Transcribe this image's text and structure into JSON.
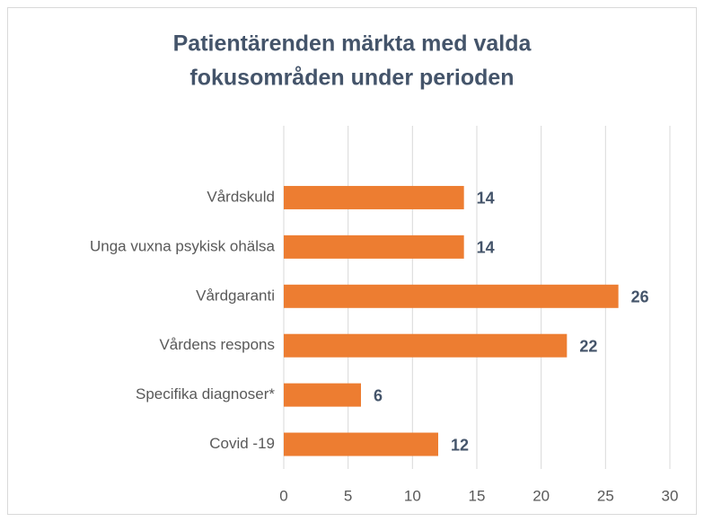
{
  "chart_data": {
    "type": "bar",
    "orientation": "horizontal",
    "title": [
      "Patientärenden märkta med valda",
      "fokusområden under perioden"
    ],
    "categories": [
      "Vårdskuld",
      "Unga vuxna psykisk ohälsa",
      "Vårdgaranti",
      "Vårdens respons",
      "Specifika diagnoser*",
      "Covid -19"
    ],
    "values": [
      14,
      14,
      26,
      22,
      6,
      12
    ],
    "color": "#ed7d31",
    "xlim": [
      0,
      30
    ],
    "xticks": [
      0,
      5,
      10,
      15,
      20,
      25,
      30
    ],
    "grid": true
  }
}
